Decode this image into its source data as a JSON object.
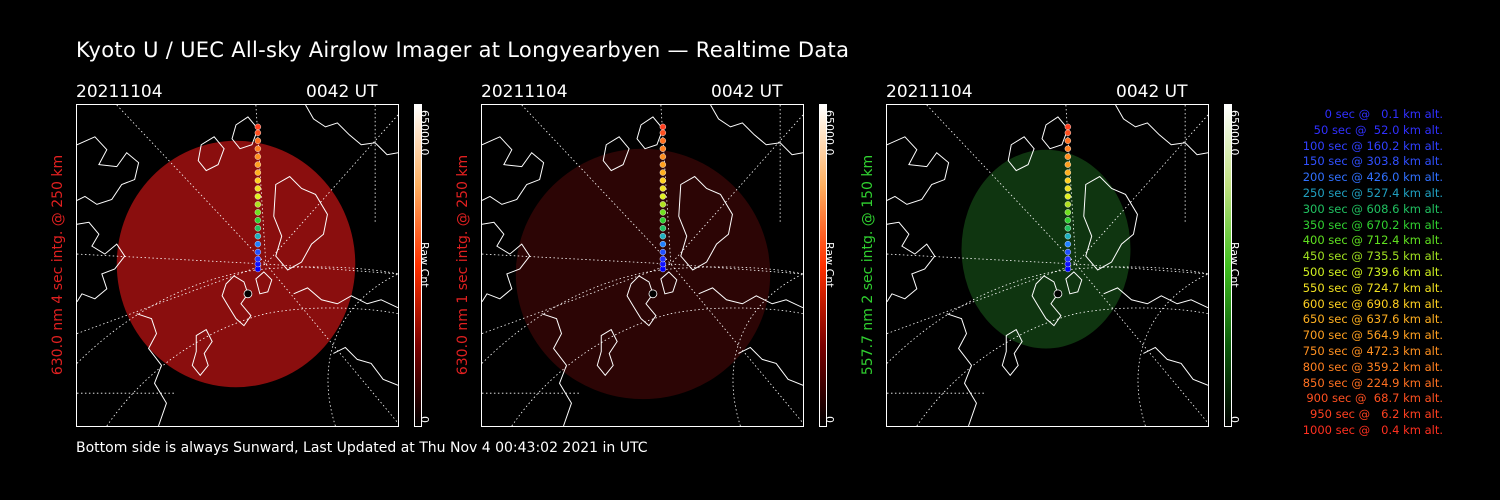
{
  "title": "Kyoto U / UEC All-sky Airglow Imager at Longyearbyen — Realtime Data",
  "footer": "Bottom side is always Sunward, Last Updated at Thu Nov  4 00:43:02 2021 in UTC",
  "panels": [
    {
      "date": "20211104",
      "time": "0042 UT",
      "ylabel": "630.0 nm 4 sec intg. @ 250 km",
      "label_color": "#e02020",
      "cbar_max": "65000.0",
      "cbar_unit": "Raw Cnt",
      "cbar_min": "0",
      "cbar_colors": [
        "#000000",
        "#7a0000",
        "#ff3000",
        "#ffb060",
        "#ffffff"
      ],
      "glow_color": "#8a0e0e"
    },
    {
      "date": "20211104",
      "time": "0042 UT",
      "ylabel": "630.0 nm 1 sec intg. @ 250 km",
      "label_color": "#e02020",
      "cbar_max": "65000.0",
      "cbar_unit": "Raw Cnt",
      "cbar_min": "0",
      "cbar_colors": [
        "#000000",
        "#7a0000",
        "#ff3000",
        "#ffb060",
        "#ffffff"
      ],
      "glow_color": "#2c0505"
    },
    {
      "date": "20211104",
      "time": "0042 UT",
      "ylabel": "557.7 nm 2 sec intg. @ 150 km",
      "label_color": "#30d030",
      "cbar_max": "65000.0",
      "cbar_unit": "Raw Cnt",
      "cbar_min": "0",
      "cbar_colors": [
        "#000000",
        "#0a5a0a",
        "#40c020",
        "#c0e080",
        "#ffffff"
      ],
      "glow_color": "#0f3510"
    }
  ],
  "legend": [
    {
      "text": "0 sec @   0.1 km alt.",
      "color": "#3030ff"
    },
    {
      "text": "50 sec @  52.0 km alt.",
      "color": "#3030ff"
    },
    {
      "text": "100 sec @ 160.2 km alt.",
      "color": "#3040ff"
    },
    {
      "text": "150 sec @ 303.8 km alt.",
      "color": "#3050ff"
    },
    {
      "text": "200 sec @ 426.0 km alt.",
      "color": "#3070ff"
    },
    {
      "text": "250 sec @ 527.4 km alt.",
      "color": "#20a0c0"
    },
    {
      "text": "300 sec @ 608.6 km alt.",
      "color": "#20c060"
    },
    {
      "text": "350 sec @ 670.2 km alt.",
      "color": "#30d030"
    },
    {
      "text": "400 sec @ 712.4 km alt.",
      "color": "#60e020"
    },
    {
      "text": "450 sec @ 735.5 km alt.",
      "color": "#a0e020"
    },
    {
      "text": "500 sec @ 739.6 km alt.",
      "color": "#d0f020"
    },
    {
      "text": "550 sec @ 724.7 km alt.",
      "color": "#f0e020"
    },
    {
      "text": "600 sec @ 690.8 km alt.",
      "color": "#ffd020"
    },
    {
      "text": "650 sec @ 637.6 km alt.",
      "color": "#ffb020"
    },
    {
      "text": "700 sec @ 564.9 km alt.",
      "color": "#ffa020"
    },
    {
      "text": "750 sec @ 472.3 km alt.",
      "color": "#ff9020"
    },
    {
      "text": "800 sec @ 359.2 km alt.",
      "color": "#ff8020"
    },
    {
      "text": "850 sec @ 224.9 km alt.",
      "color": "#ff7020"
    },
    {
      "text": "900 sec @  68.7 km alt.",
      "color": "#ff5020"
    },
    {
      "text": "950 sec @   6.2 km alt.",
      "color": "#ff4020"
    },
    {
      "text": "1000 sec @   0.4 km alt.",
      "color": "#ff3020"
    }
  ]
}
